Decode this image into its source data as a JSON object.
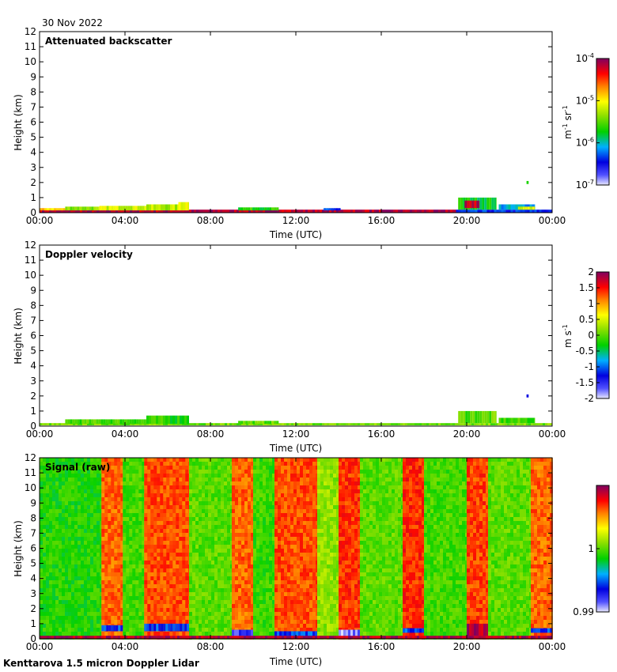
{
  "header": {
    "date": "30 Nov 2022"
  },
  "footer": {
    "instrument": "Kenttarova 1.5 micron Doppler Lidar"
  },
  "colors": {
    "axis": "#000000",
    "background": "#ffffff"
  },
  "chart_data": [
    {
      "type": "heatmap",
      "title": "Attenuated backscatter",
      "xlabel": "Time (UTC)",
      "ylabel": "Height (km)",
      "xticks": [
        "00:00",
        "04:00",
        "08:00",
        "12:00",
        "16:00",
        "20:00",
        "00:00"
      ],
      "yticks": [
        "0",
        "1",
        "2",
        "3",
        "4",
        "5",
        "6",
        "7",
        "8",
        "9",
        "10",
        "11",
        "12"
      ],
      "xlim_hours": [
        0,
        24
      ],
      "ylim_km": [
        0,
        12
      ],
      "colorbar": {
        "label_base": "m",
        "label_exp1": "-1",
        "label_mid": " sr",
        "label_exp2": "-1",
        "scale": "log",
        "ticks": [
          {
            "base": "10",
            "exp": "-4",
            "value": -4
          },
          {
            "base": "10",
            "exp": "-5",
            "value": -5
          },
          {
            "base": "10",
            "exp": "-6",
            "value": -6
          },
          {
            "base": "10",
            "exp": "-7",
            "value": -7
          }
        ],
        "range": [
          -7,
          -4
        ]
      },
      "regions": [
        {
          "t0": 0.0,
          "t1": 19.5,
          "h0": 0.0,
          "h1": 0.2,
          "v": 0.95
        },
        {
          "t0": 0.0,
          "t1": 1.2,
          "h0": 0.15,
          "h1": 0.3,
          "v": 0.7
        },
        {
          "t0": 1.2,
          "t1": 2.8,
          "h0": 0.15,
          "h1": 0.4,
          "v": 0.55
        },
        {
          "t0": 2.8,
          "t1": 5.0,
          "h0": 0.15,
          "h1": 0.45,
          "v": 0.62
        },
        {
          "t0": 5.0,
          "t1": 6.5,
          "h0": 0.15,
          "h1": 0.55,
          "v": 0.58
        },
        {
          "t0": 6.5,
          "t1": 7.0,
          "h0": 0.15,
          "h1": 0.7,
          "v": 0.66
        },
        {
          "t0": 9.3,
          "t1": 11.2,
          "h0": 0.15,
          "h1": 0.35,
          "v": 0.45
        },
        {
          "t0": 13.3,
          "t1": 14.1,
          "h0": 0.15,
          "h1": 0.3,
          "v": 0.2
        },
        {
          "t0": 19.5,
          "t1": 24.0,
          "h0": 0.0,
          "h1": 0.2,
          "v": 0.2
        },
        {
          "t0": 19.6,
          "t1": 21.4,
          "h0": 0.2,
          "h1": 1.0,
          "v": 0.42
        },
        {
          "t0": 19.9,
          "t1": 20.6,
          "h0": 0.3,
          "h1": 0.8,
          "v": 0.95
        },
        {
          "t0": 21.5,
          "t1": 23.2,
          "h0": 0.2,
          "h1": 0.55,
          "v": 0.3
        },
        {
          "t0": 22.4,
          "t1": 23.2,
          "h0": 0.2,
          "h1": 0.4,
          "v": 0.62
        },
        {
          "t0": 22.8,
          "t1": 22.9,
          "h0": 1.9,
          "h1": 2.1,
          "v": 0.42
        }
      ]
    },
    {
      "type": "heatmap",
      "title": "Doppler velocity",
      "xlabel": "Time (UTC)",
      "ylabel": "Height (km)",
      "xticks": [
        "00:00",
        "04:00",
        "08:00",
        "12:00",
        "16:00",
        "20:00",
        "00:00"
      ],
      "yticks": [
        "0",
        "1",
        "2",
        "3",
        "4",
        "5",
        "6",
        "7",
        "8",
        "9",
        "10",
        "11",
        "12"
      ],
      "xlim_hours": [
        0,
        24
      ],
      "ylim_km": [
        0,
        12
      ],
      "colorbar": {
        "label_base": "m",
        "label_exp1": "",
        "label_mid": " s",
        "label_exp2": "-1",
        "scale": "linear",
        "ticks": [
          {
            "base": "2",
            "exp": "",
            "value": 2
          },
          {
            "base": "1.5",
            "exp": "",
            "value": 1.5
          },
          {
            "base": "1",
            "exp": "",
            "value": 1
          },
          {
            "base": "0.5",
            "exp": "",
            "value": 0.5
          },
          {
            "base": "0",
            "exp": "",
            "value": 0
          },
          {
            "base": "-0.5",
            "exp": "",
            "value": -0.5
          },
          {
            "base": "-1",
            "exp": "",
            "value": -1
          },
          {
            "base": "-1.5",
            "exp": "",
            "value": -1.5
          },
          {
            "base": "-2",
            "exp": "",
            "value": -2
          }
        ],
        "range": [
          -2,
          2
        ]
      },
      "regions": [
        {
          "t0": 0.0,
          "t1": 24.0,
          "h0": 0.05,
          "h1": 0.2,
          "v": 0.52
        },
        {
          "t0": 1.2,
          "t1": 5.0,
          "h0": 0.15,
          "h1": 0.45,
          "v": 0.48
        },
        {
          "t0": 5.0,
          "t1": 7.0,
          "h0": 0.15,
          "h1": 0.7,
          "v": 0.45
        },
        {
          "t0": 9.3,
          "t1": 11.2,
          "h0": 0.15,
          "h1": 0.35,
          "v": 0.5
        },
        {
          "t0": 19.6,
          "t1": 21.4,
          "h0": 0.2,
          "h1": 1.0,
          "v": 0.5
        },
        {
          "t0": 21.5,
          "t1": 23.2,
          "h0": 0.2,
          "h1": 0.55,
          "v": 0.47
        },
        {
          "t0": 22.8,
          "t1": 22.9,
          "h0": 1.9,
          "h1": 2.1,
          "v": 0.2
        }
      ]
    },
    {
      "type": "heatmap",
      "title": "Signal (raw)",
      "xlabel": "Time (UTC)",
      "ylabel": "Height (km)",
      "xticks": [
        "00:00",
        "04:00",
        "08:00",
        "12:00",
        "16:00",
        "20:00",
        "00:00"
      ],
      "yticks": [
        "0",
        "1",
        "2",
        "3",
        "4",
        "5",
        "6",
        "7",
        "8",
        "9",
        "10",
        "11",
        "12"
      ],
      "xlim_hours": [
        0,
        24
      ],
      "ylim_km": [
        0,
        12
      ],
      "colorbar": {
        "label_base": "",
        "label_exp1": "",
        "label_mid": "",
        "label_exp2": "",
        "scale": "linear",
        "ticks": [
          {
            "base": "1",
            "exp": "",
            "value": 1.0
          },
          {
            "base": "0.99",
            "exp": "",
            "value": 0.99
          }
        ],
        "range": [
          0.99,
          1.01
        ]
      },
      "time_bands": [
        {
          "t0": 0.0,
          "t1": 2.9,
          "v": 0.45
        },
        {
          "t0": 2.9,
          "t1": 3.9,
          "v": 0.8
        },
        {
          "t0": 3.9,
          "t1": 4.9,
          "v": 0.48
        },
        {
          "t0": 4.9,
          "t1": 7.0,
          "v": 0.82
        },
        {
          "t0": 7.0,
          "t1": 9.0,
          "v": 0.5
        },
        {
          "t0": 9.0,
          "t1": 10.0,
          "v": 0.8
        },
        {
          "t0": 10.0,
          "t1": 11.0,
          "v": 0.47
        },
        {
          "t0": 11.0,
          "t1": 13.0,
          "v": 0.82
        },
        {
          "t0": 13.0,
          "t1": 14.0,
          "v": 0.55
        },
        {
          "t0": 14.0,
          "t1": 15.0,
          "v": 0.84
        },
        {
          "t0": 15.0,
          "t1": 17.0,
          "v": 0.5
        },
        {
          "t0": 17.0,
          "t1": 18.0,
          "v": 0.85
        },
        {
          "t0": 18.0,
          "t1": 20.0,
          "v": 0.48
        },
        {
          "t0": 20.0,
          "t1": 21.0,
          "v": 0.83
        },
        {
          "t0": 21.0,
          "t1": 23.0,
          "v": 0.5
        },
        {
          "t0": 23.0,
          "t1": 24.0,
          "v": 0.8
        }
      ],
      "regions": [
        {
          "t0": 0.0,
          "t1": 24.0,
          "h0": 0.0,
          "h1": 0.2,
          "v": 0.95
        },
        {
          "t0": 2.9,
          "t1": 3.9,
          "h0": 0.5,
          "h1": 0.9,
          "v": 0.22
        },
        {
          "t0": 4.9,
          "t1": 7.0,
          "h0": 0.5,
          "h1": 1.0,
          "v": 0.22
        },
        {
          "t0": 9.0,
          "t1": 10.0,
          "h0": 0.2,
          "h1": 0.6,
          "v": 0.1
        },
        {
          "t0": 11.0,
          "t1": 13.0,
          "h0": 0.2,
          "h1": 0.5,
          "v": 0.22
        },
        {
          "t0": 14.0,
          "t1": 15.0,
          "h0": 0.2,
          "h1": 0.6,
          "v": 0.05
        },
        {
          "t0": 17.0,
          "t1": 18.0,
          "h0": 0.4,
          "h1": 0.7,
          "v": 0.22
        },
        {
          "t0": 20.0,
          "t1": 21.0,
          "h0": 0.2,
          "h1": 1.0,
          "v": 0.95
        },
        {
          "t0": 23.0,
          "t1": 24.0,
          "h0": 0.4,
          "h1": 0.7,
          "v": 0.22
        }
      ]
    }
  ]
}
